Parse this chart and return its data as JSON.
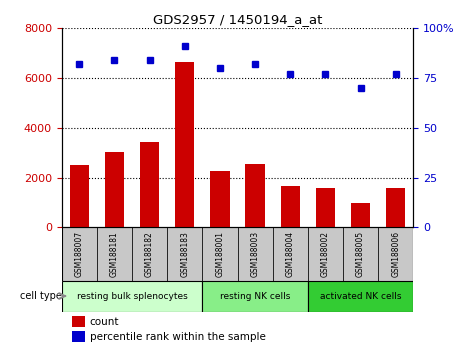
{
  "title": "GDS2957 / 1450194_a_at",
  "categories": [
    "GSM188007",
    "GSM188181",
    "GSM188182",
    "GSM188183",
    "GSM188001",
    "GSM188003",
    "GSM188004",
    "GSM188002",
    "GSM188005",
    "GSM188006"
  ],
  "counts": [
    2500,
    3050,
    3450,
    6650,
    2250,
    2550,
    1650,
    1600,
    1000,
    1600
  ],
  "percentiles": [
    82,
    84,
    84,
    91,
    80,
    82,
    77,
    77,
    70,
    77
  ],
  "bar_color": "#cc0000",
  "dot_color": "#0000cc",
  "left_ylim": [
    0,
    8000
  ],
  "right_ylim": [
    0,
    100
  ],
  "left_yticks": [
    0,
    2000,
    4000,
    6000,
    8000
  ],
  "right_yticks": [
    0,
    25,
    50,
    75,
    100
  ],
  "right_yticklabels": [
    "0",
    "25",
    "50",
    "75",
    "100%"
  ],
  "grid_values": [
    2000,
    4000,
    6000,
    8000
  ],
  "cell_type_groups": [
    {
      "label": "resting bulk splenocytes",
      "start": 0,
      "end": 3,
      "color": "#ccffcc"
    },
    {
      "label": "resting NK cells",
      "start": 4,
      "end": 6,
      "color": "#88ee88"
    },
    {
      "label": "activated NK cells",
      "start": 7,
      "end": 9,
      "color": "#33cc33"
    }
  ],
  "cell_type_label": "cell type",
  "legend_count_label": "count",
  "legend_pct_label": "percentile rank within the sample",
  "tick_bg_color": "#c8c8c8",
  "plot_bg_color": "#ffffff"
}
